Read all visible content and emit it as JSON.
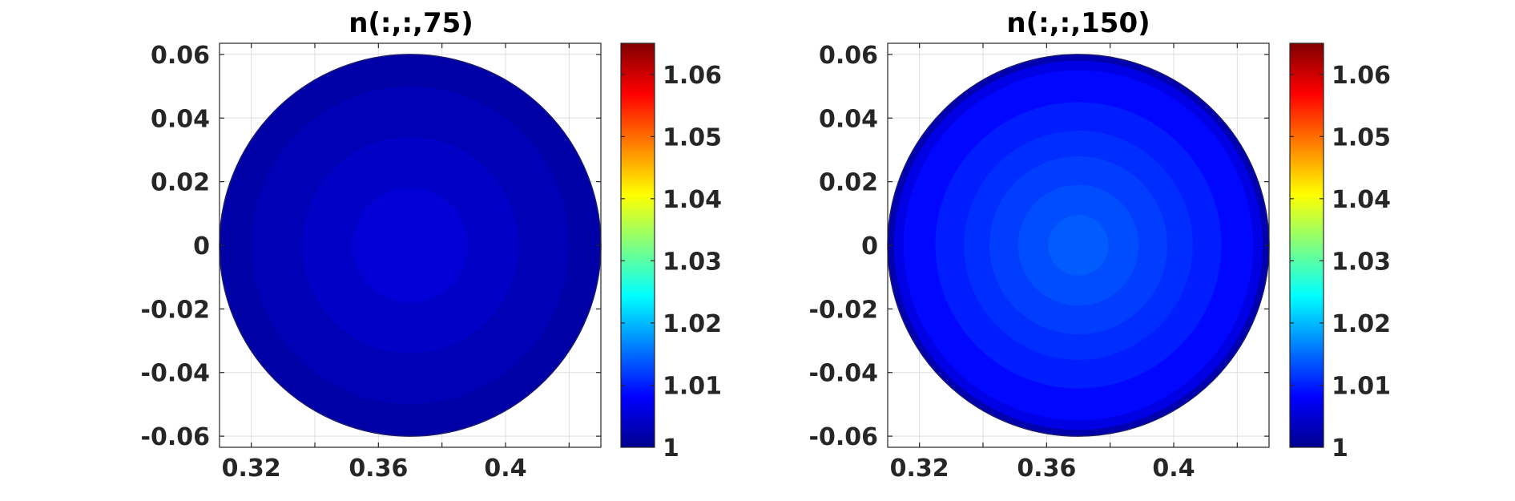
{
  "chart_data": [
    {
      "type": "heatmap",
      "title": "n(:,:,75)",
      "xlabel": "",
      "ylabel": "",
      "xlim": [
        0.31,
        0.43
      ],
      "ylim": [
        -0.0635,
        0.0635
      ],
      "x_ticks": [
        0.32,
        0.36,
        0.4
      ],
      "x_tick_labels": [
        "0.32",
        "0.36",
        "0.4"
      ],
      "y_ticks": [
        0.06,
        0.04,
        0.02,
        0,
        -0.02,
        -0.04,
        -0.06
      ],
      "y_tick_labels": [
        "0.06",
        "0.04",
        "0.02",
        "0",
        "-0.02",
        "-0.04",
        "-0.06"
      ],
      "grid": true,
      "disk": {
        "center_x": 0.37,
        "center_y": 0.0,
        "radius": 0.06
      },
      "rings": [
        {
          "outer_radius": 0.06,
          "value": 1.0025
        },
        {
          "outer_radius": 0.05,
          "value": 1.0035
        },
        {
          "outer_radius": 0.034,
          "value": 1.0045
        },
        {
          "outer_radius": 0.018,
          "value": 1.0055
        }
      ],
      "colorbar": {
        "colormap": "jet",
        "range": [
          1.0,
          1.065
        ],
        "ticks": [
          1,
          1.01,
          1.02,
          1.03,
          1.04,
          1.05,
          1.06
        ],
        "tick_labels": [
          "1",
          "1.01",
          "1.02",
          "1.03",
          "1.04",
          "1.05",
          "1.06"
        ]
      }
    },
    {
      "type": "heatmap",
      "title": "n(:,:,150)",
      "xlabel": "",
      "ylabel": "",
      "xlim": [
        0.31,
        0.43
      ],
      "ylim": [
        -0.0635,
        0.0635
      ],
      "x_ticks": [
        0.32,
        0.36,
        0.4
      ],
      "x_tick_labels": [
        "0.32",
        "0.36",
        "0.4"
      ],
      "y_ticks": [
        0.06,
        0.04,
        0.02,
        0,
        -0.02,
        -0.04,
        -0.06
      ],
      "y_tick_labels": [
        "0.06",
        "0.04",
        "0.02",
        "0",
        "-0.02",
        "-0.04",
        "-0.06"
      ],
      "grid": true,
      "disk": {
        "center_x": 0.37,
        "center_y": 0.0,
        "radius": 0.06
      },
      "rings": [
        {
          "outer_radius": 0.06,
          "value": 1.003
        },
        {
          "outer_radius": 0.058,
          "value": 1.0065
        },
        {
          "outer_radius": 0.055,
          "value": 1.0085
        },
        {
          "outer_radius": 0.045,
          "value": 1.01
        },
        {
          "outer_radius": 0.036,
          "value": 1.011
        },
        {
          "outer_radius": 0.028,
          "value": 1.012
        },
        {
          "outer_radius": 0.019,
          "value": 1.013
        },
        {
          "outer_radius": 0.0095,
          "value": 1.014
        }
      ],
      "colorbar": {
        "colormap": "jet",
        "range": [
          1.0,
          1.065
        ],
        "ticks": [
          1,
          1.01,
          1.02,
          1.03,
          1.04,
          1.05,
          1.06
        ],
        "tick_labels": [
          "1",
          "1.01",
          "1.02",
          "1.03",
          "1.04",
          "1.05",
          "1.06"
        ]
      }
    }
  ]
}
